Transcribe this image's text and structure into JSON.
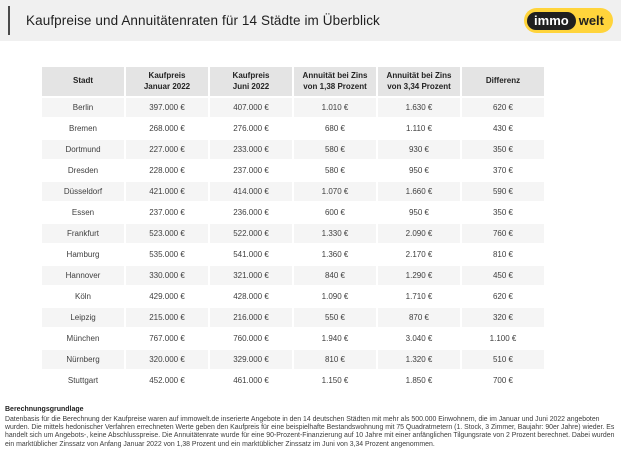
{
  "header": {
    "title": "Kaufpreise und Annuitätenraten für 14 Städte im Überblick",
    "logo": {
      "part1": "immo",
      "part2": "welt"
    }
  },
  "chart_data": {
    "type": "table",
    "title": "Kaufpreise und Annuitätenraten für 14 Städte im Überblick",
    "columns": [
      {
        "line1": "Stadt",
        "line2": ""
      },
      {
        "line1": "Kaufpreis",
        "line2": "Januar 2022"
      },
      {
        "line1": "Kaufpreis",
        "line2": "Juni 2022"
      },
      {
        "line1": "Annuität bei Zins",
        "line2": "von 1,38 Prozent"
      },
      {
        "line1": "Annuität bei Zins",
        "line2": "von 3,34 Prozent"
      },
      {
        "line1": "Differenz",
        "line2": ""
      }
    ],
    "rows": [
      [
        "Berlin",
        "397.000 €",
        "407.000 €",
        "1.010 €",
        "1.630 €",
        "620 €"
      ],
      [
        "Bremen",
        "268.000 €",
        "276.000 €",
        "680 €",
        "1.110 €",
        "430 €"
      ],
      [
        "Dortmund",
        "227.000 €",
        "233.000 €",
        "580 €",
        "930 €",
        "350 €"
      ],
      [
        "Dresden",
        "228.000 €",
        "237.000 €",
        "580 €",
        "950 €",
        "370 €"
      ],
      [
        "Düsseldorf",
        "421.000 €",
        "414.000 €",
        "1.070 €",
        "1.660 €",
        "590 €"
      ],
      [
        "Essen",
        "237.000 €",
        "236.000 €",
        "600 €",
        "950 €",
        "350 €"
      ],
      [
        "Frankfurt",
        "523.000 €",
        "522.000 €",
        "1.330 €",
        "2.090 €",
        "760 €"
      ],
      [
        "Hamburg",
        "535.000 €",
        "541.000 €",
        "1.360 €",
        "2.170 €",
        "810 €"
      ],
      [
        "Hannover",
        "330.000 €",
        "321.000 €",
        "840 €",
        "1.290 €",
        "450 €"
      ],
      [
        "Köln",
        "429.000 €",
        "428.000 €",
        "1.090 €",
        "1.710 €",
        "620 €"
      ],
      [
        "Leipzig",
        "215.000 €",
        "216.000 €",
        "550 €",
        "870 €",
        "320 €"
      ],
      [
        "München",
        "767.000 €",
        "760.000 €",
        "1.940 €",
        "3.040 €",
        "1.100 €"
      ],
      [
        "Nürnberg",
        "320.000 €",
        "329.000 €",
        "810 €",
        "1.320 €",
        "510 €"
      ],
      [
        "Stuttgart",
        "452.000 €",
        "461.000 €",
        "1.150 €",
        "1.850 €",
        "700 €"
      ]
    ]
  },
  "footer": {
    "heading": "Berechnungsgrundlage",
    "body": "Datenbasis für die Berechnung der Kaufpreise waren auf immowelt.de inserierte Angebote in den 14 deutschen Städten mit mehr als 500.000 Einwohnern, die im Januar und Juni 2022 angeboten wurden. Die mittels hedonischer Verfahren errechneten Werte geben den Kaufpreis für eine beispielhafte Bestandswohnung mit 75 Quadratmetern (1. Stock, 3 Zimmer, Baujahr: 90er Jahre) wieder. Es handelt sich um Angebots-, keine Abschlusspreise. Die Annuitätenrate wurde für eine 90-Prozent-Finanzierung auf 10 Jahre mit einer anfänglichen Tilgungsrate von 2 Prozent berechnet. Dabei wurden ein marktüblicher Zinssatz von Anfang Januar 2022 von 1,38 Prozent und ein marktüblicher Zinssatz im Juni von 3,34 Prozent angenommen."
  },
  "colors": {
    "brand_yellow": "#ffd43b",
    "logo_black": "#1f1f1f",
    "header_bar_bg": "#f0f0f0",
    "table_header_bg": "#e4e4e4",
    "row_stripe_bg": "#f5f5f5",
    "text": "#3f3f3f"
  }
}
